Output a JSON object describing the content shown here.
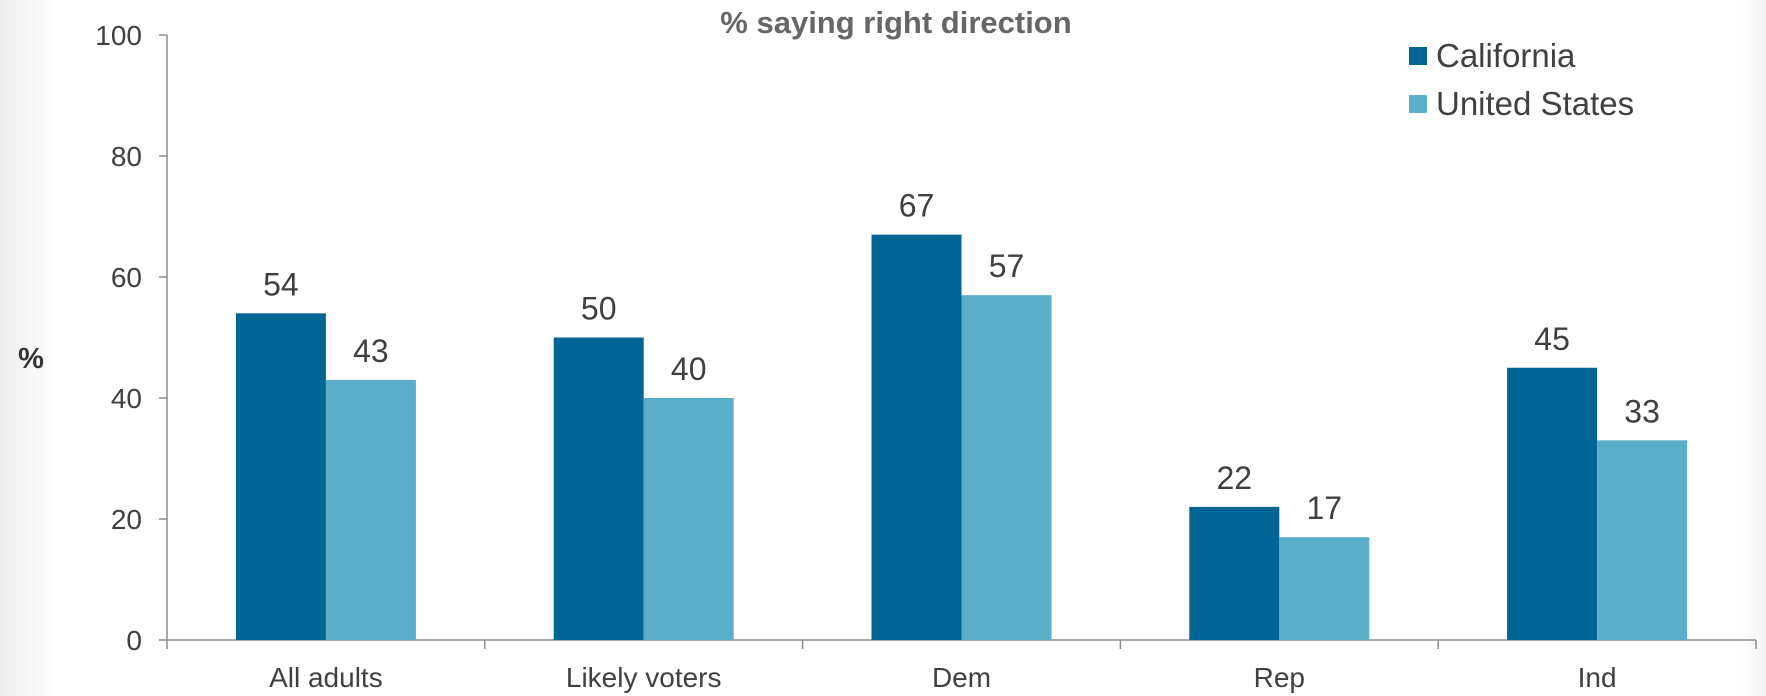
{
  "chart_data": {
    "type": "bar",
    "title": "% saying right direction",
    "ylabel": "%",
    "xlabel": "",
    "ylim": [
      0,
      100
    ],
    "yticks": [
      0,
      20,
      40,
      60,
      80,
      100
    ],
    "categories": [
      "All adults",
      "Likely voters",
      "Dem",
      "Rep",
      "Ind"
    ],
    "series": [
      {
        "name": "California",
        "color": "#006595",
        "values": [
          54,
          50,
          67,
          22,
          45
        ]
      },
      {
        "name": "United States",
        "color": "#5AAEC8",
        "values": [
          43,
          40,
          57,
          17,
          33
        ]
      }
    ],
    "grid": false,
    "legend": "top-right"
  }
}
